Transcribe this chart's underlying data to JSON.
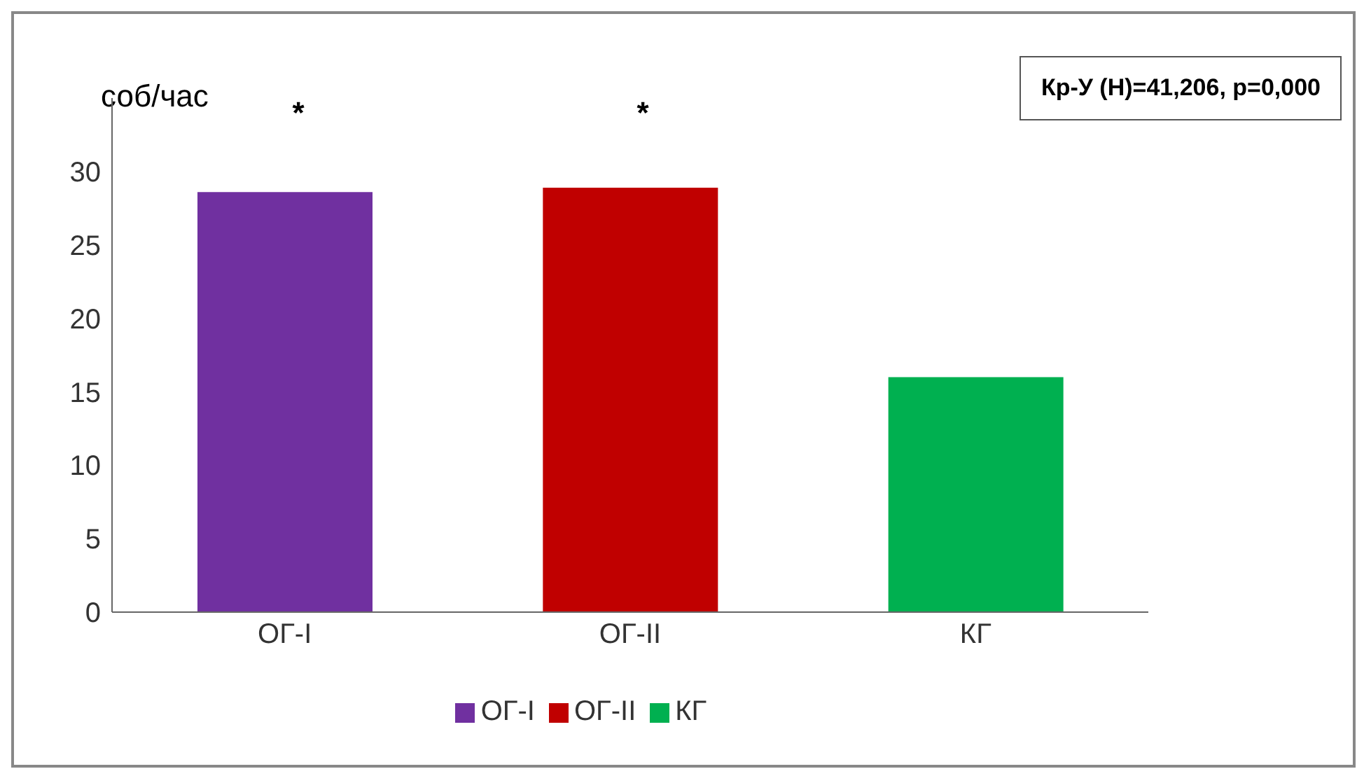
{
  "chart_data": {
    "type": "bar",
    "ylabel": "соб/час",
    "categories": [
      "ОГ-I",
      "ОГ-II",
      "КГ"
    ],
    "series": [
      {
        "name": "ОГ-I",
        "color": "#7030a0",
        "values": [
          28.6,
          null,
          null
        ]
      },
      {
        "name": "ОГ-II",
        "color": "#c00000",
        "values": [
          null,
          28.9,
          null
        ]
      },
      {
        "name": "КГ",
        "color": "#00b050",
        "values": [
          null,
          null,
          16
        ]
      }
    ],
    "stacked": true,
    "ylim": [
      0,
      35
    ],
    "yticks": [
      0,
      5,
      10,
      15,
      20,
      25,
      30
    ],
    "grid": false,
    "legend": "bottom",
    "annotations": [
      "*",
      "*",
      "Кр-У (Н)=41,206, р=0,000"
    ]
  }
}
